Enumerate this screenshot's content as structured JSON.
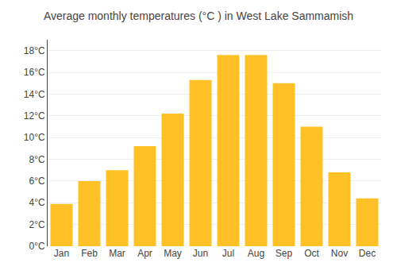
{
  "chart_data": {
    "type": "bar",
    "title": "Average monthly temperatures (°C ) in West Lake Sammamish",
    "categories": [
      "Jan",
      "Feb",
      "Mar",
      "Apr",
      "May",
      "Jun",
      "Jul",
      "Aug",
      "Sep",
      "Oct",
      "Nov",
      "Dec"
    ],
    "values": [
      3.9,
      6.0,
      7.0,
      9.2,
      12.2,
      15.3,
      17.6,
      17.6,
      15.0,
      11.0,
      6.8,
      4.4
    ],
    "color": "#FFC125",
    "ylim": [
      0,
      19
    ],
    "yticks": [
      {
        "value": 0,
        "label": "0°C"
      },
      {
        "value": 2,
        "label": "2°C"
      },
      {
        "value": 4,
        "label": "4°C"
      },
      {
        "value": 6,
        "label": "6°C"
      },
      {
        "value": 8,
        "label": "8°C"
      },
      {
        "value": 10,
        "label": "10°C"
      },
      {
        "value": 12,
        "label": "12°C"
      },
      {
        "value": 14,
        "label": "14°C"
      },
      {
        "value": 16,
        "label": "16°C"
      },
      {
        "value": 18,
        "label": "18°C"
      }
    ],
    "grid": true
  }
}
